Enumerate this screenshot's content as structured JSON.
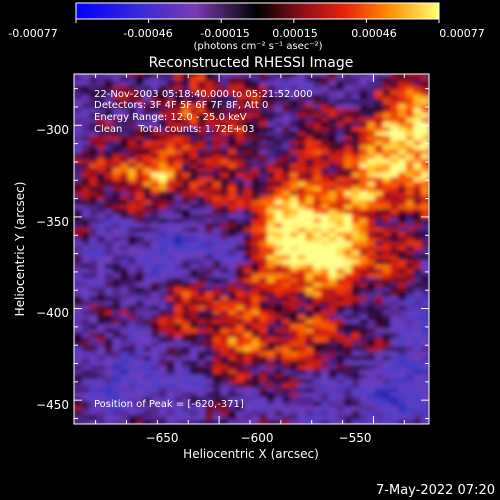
{
  "colorbar": {
    "ticks": [
      "-0.00077",
      "-0.00046",
      "-0.00015",
      "0.00015",
      "0.00046",
      "0.00077"
    ],
    "unit_label": "(photons cm⁻² s⁻¹ asec⁻²)"
  },
  "chart_data": {
    "type": "heatmap",
    "title": "Reconstructed RHESSI Image",
    "xlabel": "Heliocentric X (arcsec)",
    "ylabel": "Heliocentric Y (arcsec)",
    "xlim": [
      -697,
      -582
    ],
    "ylim": [
      -463,
      -272
    ],
    "x_ticks": [
      -650,
      -600,
      -550
    ],
    "y_ticks": [
      -300,
      -350,
      -400,
      -450
    ],
    "x_tick_labels": [
      "−650",
      "−600",
      "−550"
    ],
    "y_tick_labels": [
      "−300",
      "−350",
      "−400",
      "−450"
    ],
    "colorbar_range": [
      -0.00077,
      0.00077
    ],
    "annotations": [
      "22-Nov-2003 05:18:40.000 to 05:21:52.000",
      "Detectors: 3F 4F 5F 6F 7F 8F, Att 0",
      "Energy Range: 12.0 - 25.0 keV",
      "Clean     Total counts: 1.72E+03"
    ],
    "peak_label": "Position of Peak = [-620,-371]",
    "peak": {
      "x": -620,
      "y": -371
    }
  },
  "footer": {
    "timestamp": "7-May-2022 07:20"
  }
}
